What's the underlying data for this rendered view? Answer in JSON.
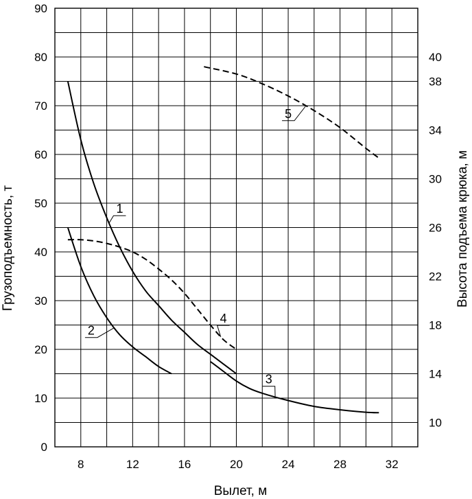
{
  "chart_data": {
    "type": "line",
    "title": "",
    "xlabel": "Вылет, м",
    "ylabel": "Грузоподъемность, т",
    "y2label": "Высота подъема крюка, м",
    "xlim": [
      6,
      34
    ],
    "ylim": [
      0,
      90
    ],
    "y2lim": [
      8,
      44
    ],
    "xticks": [
      8,
      12,
      16,
      20,
      24,
      28,
      32
    ],
    "yticks": [
      0,
      10,
      20,
      30,
      40,
      50,
      60,
      70,
      80,
      90
    ],
    "y2ticks": [
      10,
      14,
      18,
      22,
      26,
      30,
      34,
      38,
      40
    ],
    "grid": true,
    "series": [
      {
        "name": "1",
        "axis": "left",
        "style": "solid",
        "x": [
          7,
          8,
          9,
          10,
          11,
          12,
          13,
          14,
          15,
          16,
          17,
          18,
          19,
          20
        ],
        "y": [
          75,
          63,
          54,
          47,
          41,
          36,
          32,
          29,
          26,
          23.5,
          21,
          19,
          17,
          15
        ]
      },
      {
        "name": "2",
        "axis": "left",
        "style": "solid",
        "x": [
          7,
          8,
          9,
          10,
          11,
          12,
          13,
          14,
          15
        ],
        "y": [
          45,
          37,
          31,
          26.5,
          23,
          20.5,
          18.5,
          16.5,
          15
        ]
      },
      {
        "name": "3",
        "axis": "left",
        "style": "solid",
        "x": [
          18,
          19,
          20,
          21,
          22,
          24,
          26,
          28,
          30,
          31
        ],
        "y": [
          17.5,
          15.5,
          13.5,
          12,
          11,
          9.5,
          8.3,
          7.6,
          7.1,
          7
        ]
      },
      {
        "name": "4",
        "axis": "right",
        "style": "dashed",
        "x": [
          7,
          8,
          9,
          10,
          11,
          12,
          13,
          14,
          15,
          16,
          17,
          18,
          19,
          20
        ],
        "y": [
          25,
          25,
          24.9,
          24.7,
          24.4,
          24,
          23.4,
          22.6,
          21.7,
          20.6,
          19.3,
          18,
          16.8,
          16
        ]
      },
      {
        "name": "5",
        "axis": "right",
        "style": "dashed",
        "x": [
          17.5,
          20,
          22,
          24,
          26,
          28,
          30,
          31
        ],
        "y": [
          39.2,
          38.6,
          37.8,
          36.8,
          35.6,
          34.2,
          32.5,
          31.7
        ]
      }
    ],
    "labels": [
      {
        "text": "1",
        "series": 0,
        "at": [
          11,
          48
        ]
      },
      {
        "text": "2",
        "series": 1,
        "at": [
          8.8,
          23
        ]
      },
      {
        "text": "3",
        "series": 2,
        "at": [
          22.5,
          13
        ]
      },
      {
        "text": "4",
        "series": 3,
        "at": [
          19,
          25.5
        ]
      },
      {
        "text": "5",
        "series": 4,
        "at": [
          24,
          67.5
        ]
      }
    ]
  }
}
